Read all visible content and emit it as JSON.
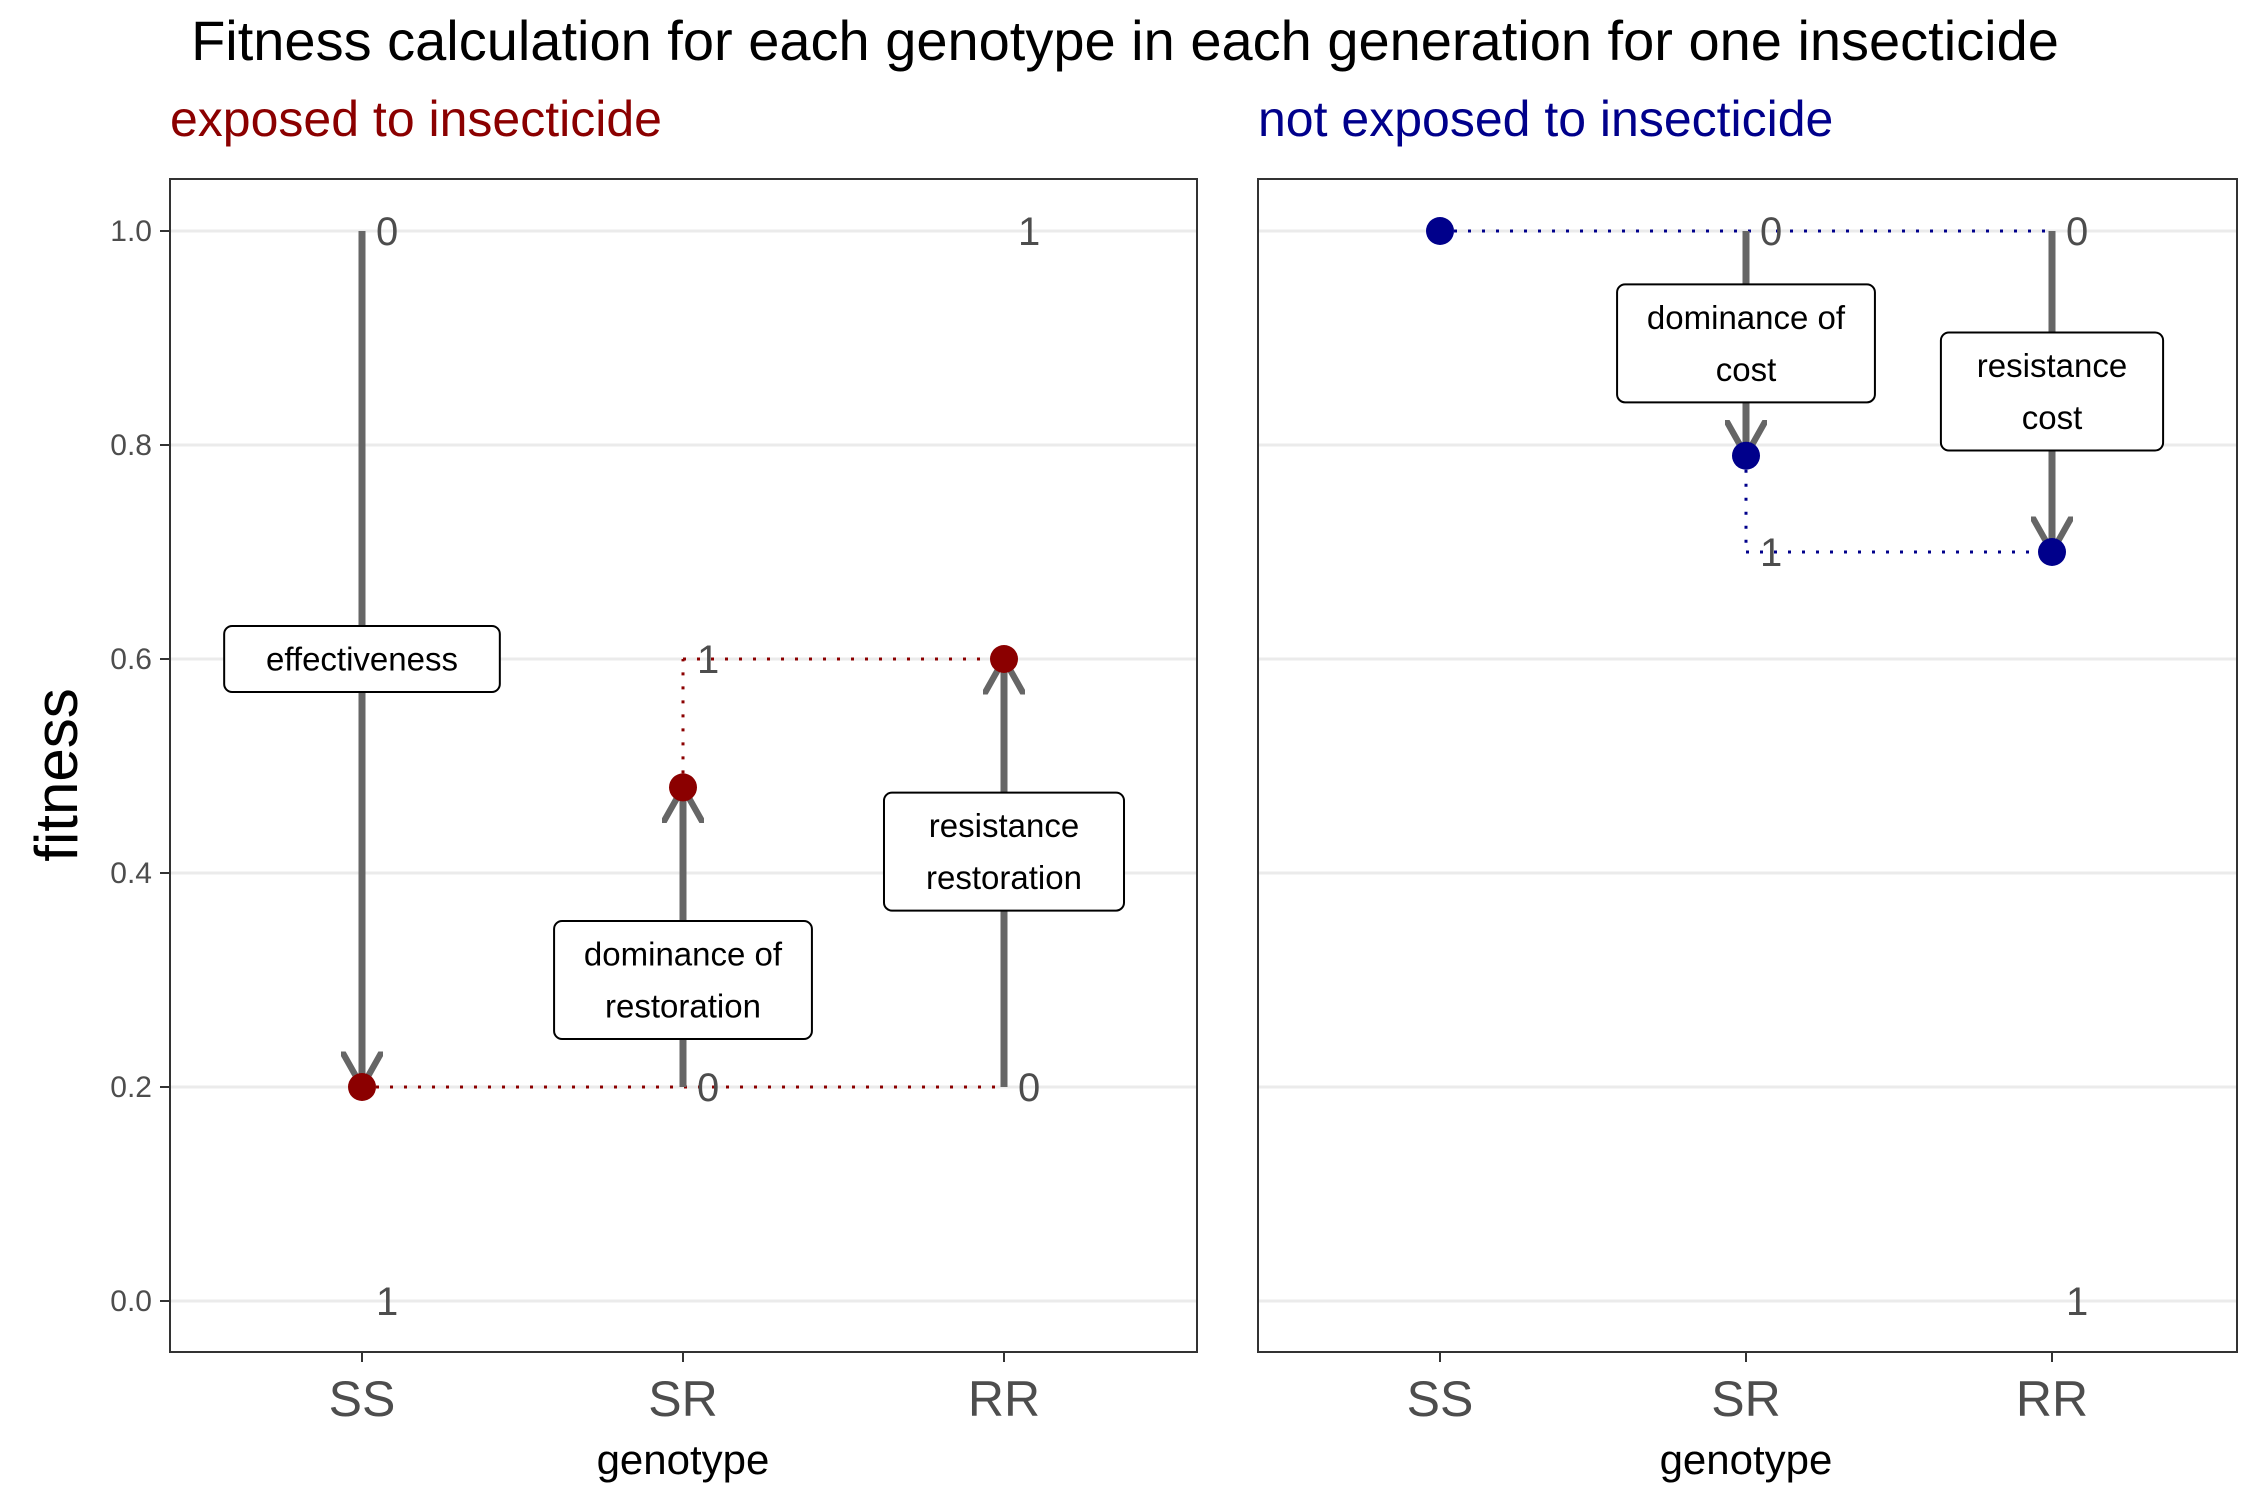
{
  "title": "Fitness calculation for each genotype in each generation for one insecticide",
  "colors": {
    "exposed": "#8B0000",
    "not_exposed": "#00008B",
    "arrow": "#666666",
    "grid": "#EBEBEB",
    "tick_text": "#4D4D4D"
  },
  "chart_data": [
    {
      "type": "scatter",
      "subtitle": "exposed to insecticide",
      "color": "#8B0000",
      "xlabel": "genotype",
      "ylabel": "fitness",
      "categories": [
        "SS",
        "SR",
        "RR"
      ],
      "ylim": [
        0,
        1
      ],
      "yticks": [
        "0.0",
        "0.2",
        "0.4",
        "0.6",
        "0.8",
        "1.0"
      ],
      "grid": true,
      "points": [
        {
          "x": "SS",
          "y": 0.2
        },
        {
          "x": "SR",
          "y": 0.48
        },
        {
          "x": "RR",
          "y": 0.6
        }
      ],
      "dotted_lines": [
        {
          "from": [
            "SS",
            0.2
          ],
          "to": [
            "RR",
            0.2
          ]
        },
        {
          "from": [
            "SR",
            0.48
          ],
          "to": [
            "SR",
            0.6
          ]
        },
        {
          "from": [
            "SR",
            0.6
          ],
          "to": [
            "RR",
            0.6
          ]
        }
      ],
      "arrows": [
        {
          "x": "SS",
          "from": 1.0,
          "to": 0.2,
          "label": "effectiveness",
          "label_y": 0.6
        },
        {
          "x": "SR",
          "from": 0.2,
          "to": 0.48,
          "label": "dominance of\nrestoration",
          "label_y": 0.3
        },
        {
          "x": "RR",
          "from": 0.2,
          "to": 0.6,
          "label": "resistance\nrestoration",
          "label_y": 0.42
        }
      ],
      "annotations": [
        {
          "x": "SS",
          "y": 1.0,
          "text": "0"
        },
        {
          "x": "SS",
          "y": 0.0,
          "text": "1"
        },
        {
          "x": "SR",
          "y": 0.6,
          "text": "1"
        },
        {
          "x": "SR",
          "y": 0.2,
          "text": "0"
        },
        {
          "x": "RR",
          "y": 1.0,
          "text": "1"
        },
        {
          "x": "RR",
          "y": 0.2,
          "text": "0"
        }
      ]
    },
    {
      "type": "scatter",
      "subtitle": "not exposed to insecticide",
      "color": "#00008B",
      "xlabel": "genotype",
      "categories": [
        "SS",
        "SR",
        "RR"
      ],
      "ylim": [
        0,
        1
      ],
      "grid": true,
      "points": [
        {
          "x": "SS",
          "y": 1.0
        },
        {
          "x": "SR",
          "y": 0.79
        },
        {
          "x": "RR",
          "y": 0.7
        }
      ],
      "dotted_lines": [
        {
          "from": [
            "SS",
            1.0
          ],
          "to": [
            "RR",
            1.0
          ]
        },
        {
          "from": [
            "SR",
            0.79
          ],
          "to": [
            "SR",
            0.7
          ]
        },
        {
          "from": [
            "SR",
            0.7
          ],
          "to": [
            "RR",
            0.7
          ]
        }
      ],
      "arrows": [
        {
          "x": "SR",
          "from": 1.0,
          "to": 0.79,
          "label": "dominance of\ncost",
          "label_y": 0.895
        },
        {
          "x": "RR",
          "from": 1.0,
          "to": 0.7,
          "label": "resistance\ncost",
          "label_y": 0.85
        }
      ],
      "annotations": [
        {
          "x": "SR",
          "y": 1.0,
          "text": "0"
        },
        {
          "x": "SR",
          "y": 0.7,
          "text": "1"
        },
        {
          "x": "RR",
          "y": 1.0,
          "text": "0"
        },
        {
          "x": "RR",
          "y": 0.0,
          "text": "1"
        }
      ]
    }
  ]
}
